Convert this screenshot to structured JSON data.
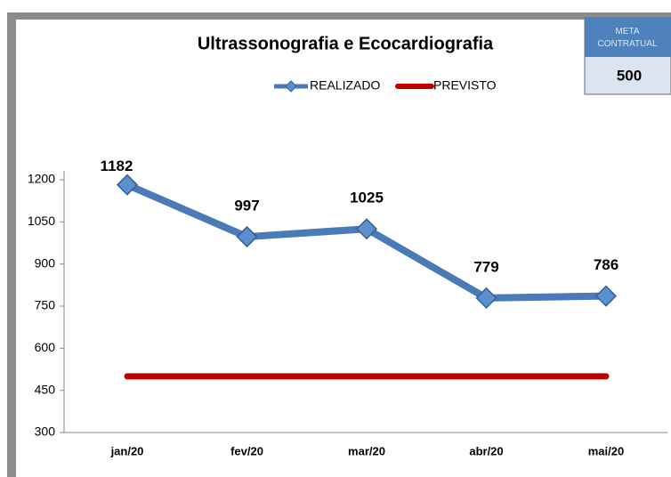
{
  "chart_data": {
    "type": "line",
    "title": "Ultrassonografia e Ecocardiografia",
    "categories": [
      "jan/20",
      "fev/20",
      "mar/20",
      "abr/20",
      "mai/20"
    ],
    "series": [
      {
        "name": "REALIZADO",
        "color": "#4a7ab8",
        "values": [
          1182,
          997,
          1025,
          779,
          786
        ]
      },
      {
        "name": "PREVISTO",
        "color": "#c00000",
        "values": [
          500,
          500,
          500,
          500,
          500
        ]
      }
    ],
    "ylim": [
      300,
      1200
    ],
    "yticks": [
      300,
      450,
      600,
      750,
      900,
      1050,
      1200
    ],
    "legend": "top",
    "meta": {
      "label": "META CONTRATUAL",
      "value": "500"
    }
  }
}
